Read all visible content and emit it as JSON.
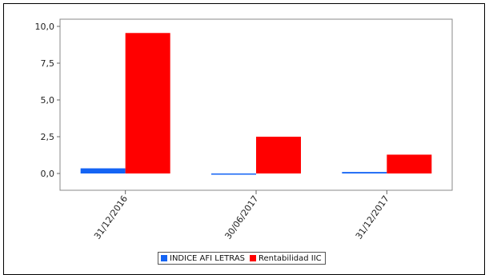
{
  "chart_data": {
    "type": "bar",
    "categories": [
      "31/12/2016",
      "30/06/2017",
      "31/12/2017"
    ],
    "series": [
      {
        "name": "INDICE AFI LETRAS",
        "color": "#1464f4",
        "values": [
          0.35,
          -0.08,
          0.1
        ]
      },
      {
        "name": "Rentabilidad IIC",
        "color": "#ff0000",
        "values": [
          9.55,
          2.5,
          1.28
        ]
      }
    ],
    "ylim": [
      -1.0,
      10.5
    ],
    "yticks": [
      {
        "value": 10.0,
        "label": "10,0"
      },
      {
        "value": 7.5,
        "label": "7,5"
      },
      {
        "value": 5.0,
        "label": "5,0"
      },
      {
        "value": 2.5,
        "label": "2,5"
      },
      {
        "value": 0.0,
        "label": "0,0"
      }
    ],
    "grid": false,
    "legend": "bottom",
    "title": "",
    "xlabel": "",
    "ylabel": ""
  }
}
